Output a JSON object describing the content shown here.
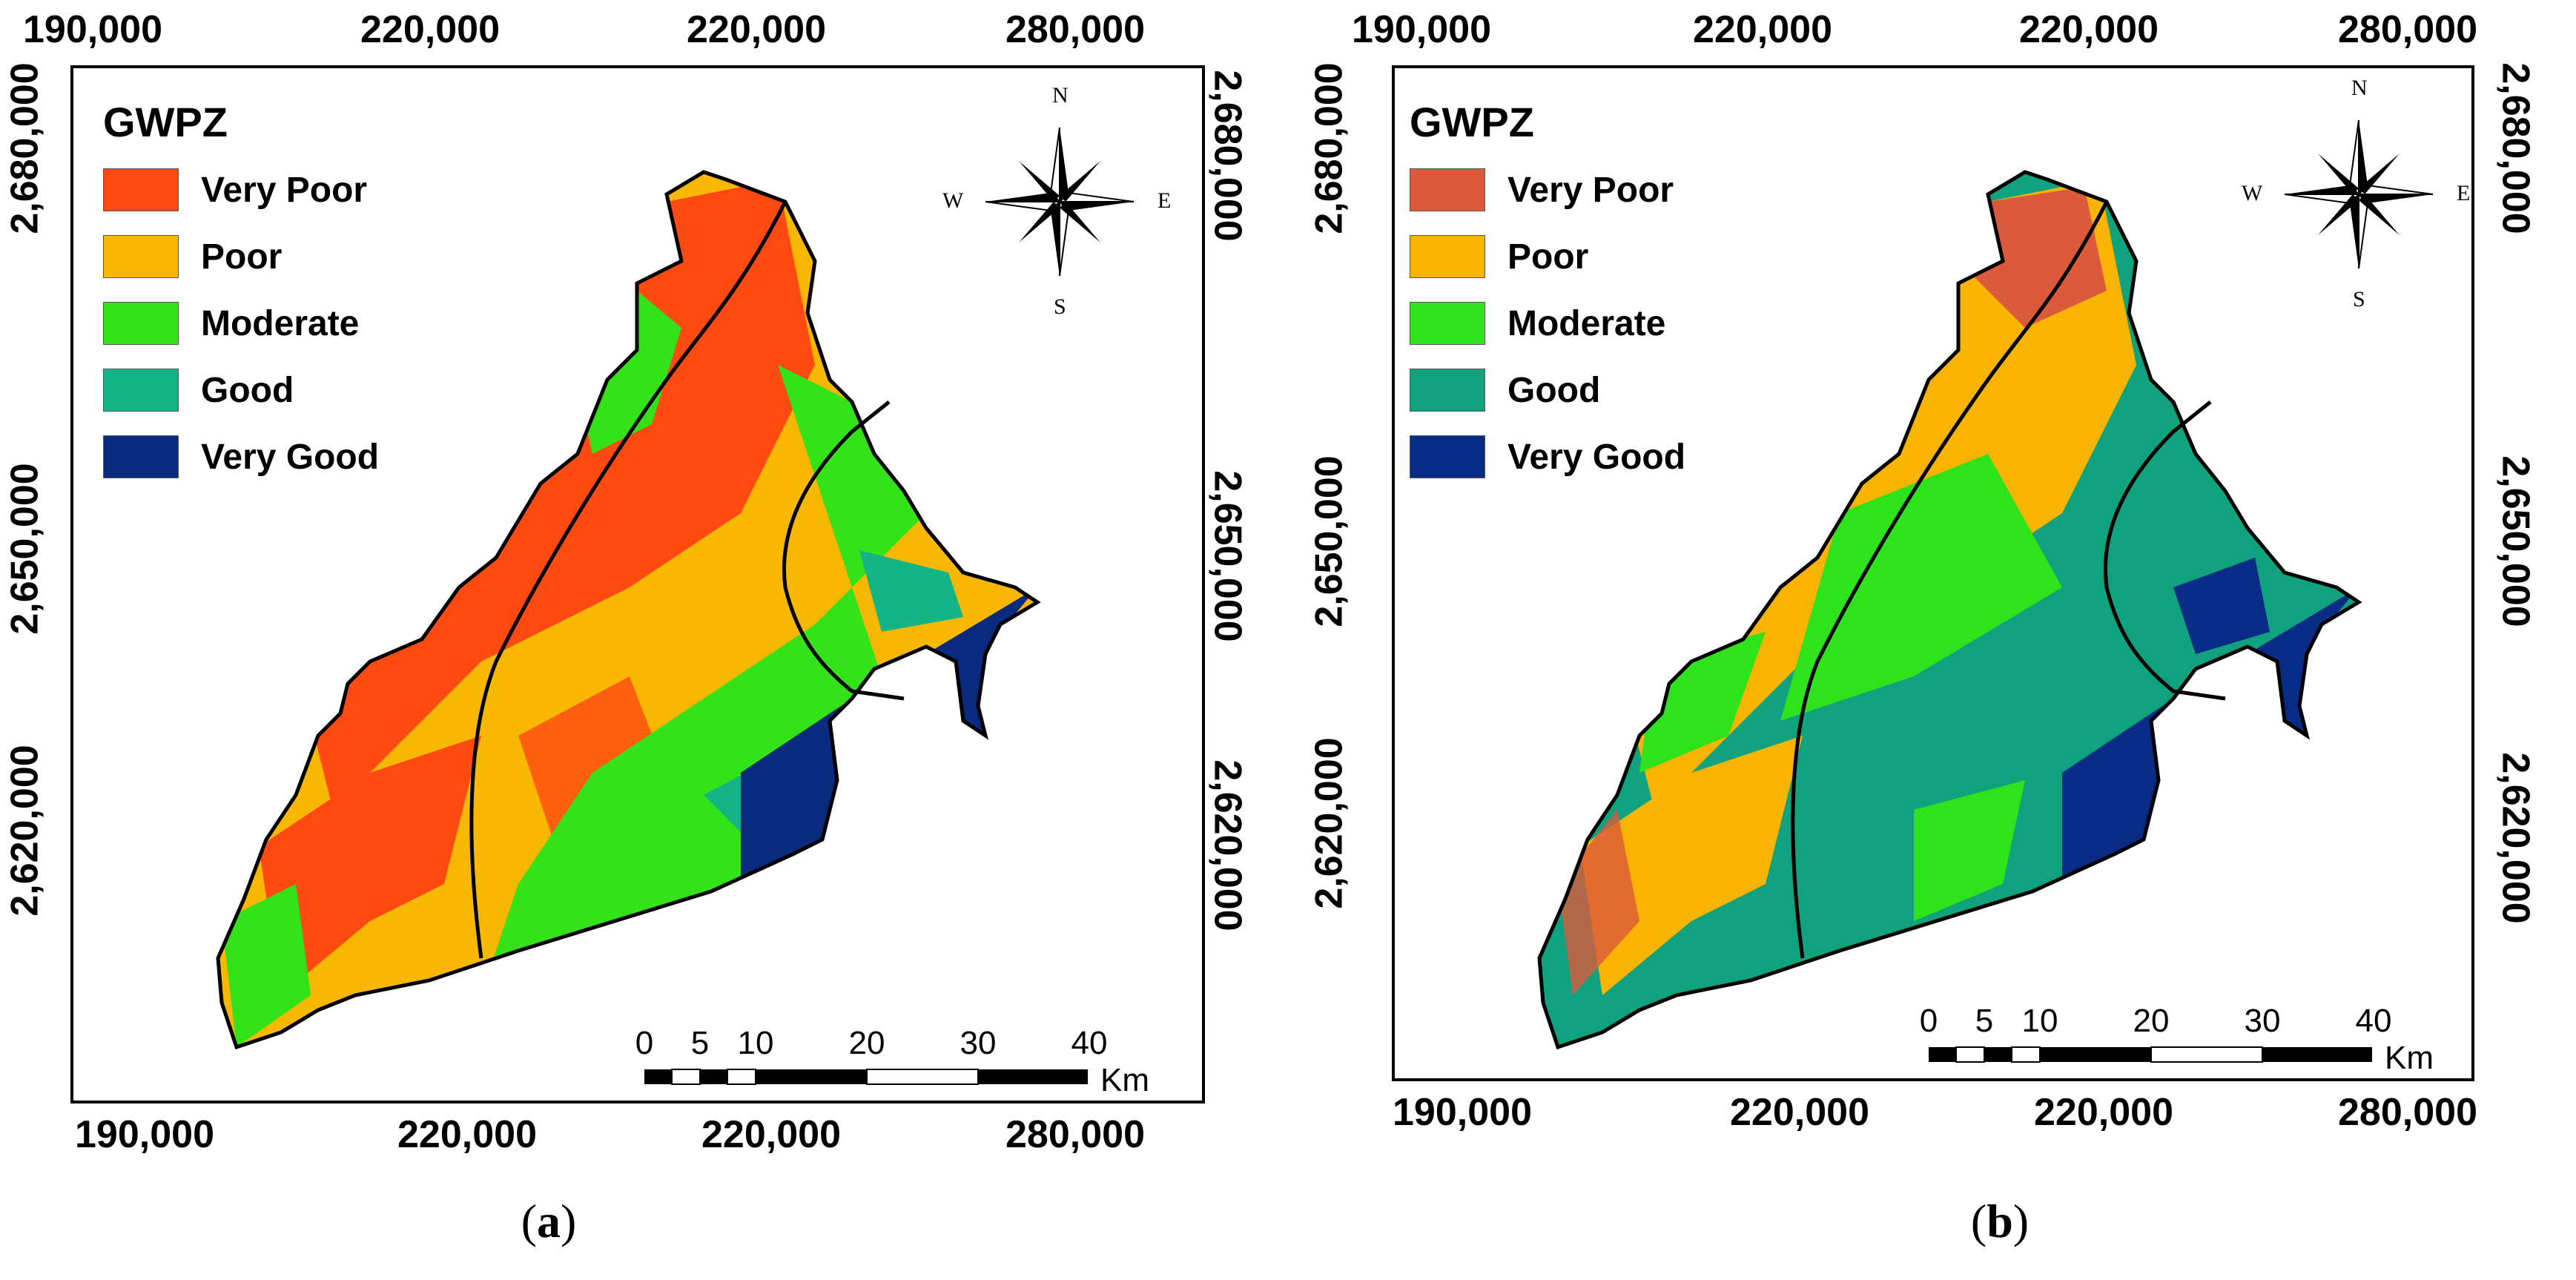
{
  "panels": [
    {
      "id": "a",
      "caption_letter": "a",
      "legend": {
        "title": "GWPZ",
        "items": [
          {
            "label": "Very Poor",
            "color": "#ff4a12"
          },
          {
            "label": "Poor",
            "color": "#f8b700"
          },
          {
            "label": "Moderate",
            "color": "#34e21a"
          },
          {
            "label": "Good",
            "color": "#14b486"
          },
          {
            "label": "Very Good",
            "color": "#0a2a7e"
          }
        ]
      },
      "x_ticks_top": [
        "190,000",
        "220,000",
        "220,000",
        "280,000"
      ],
      "x_ticks_bottom": [
        "190,000",
        "220,000",
        "220,000",
        "280,000"
      ],
      "y_ticks_left": [
        "2,680,000",
        "2,650,000",
        "2,620,000"
      ],
      "y_ticks_right": [
        "2,680,000",
        "2,650,000",
        "2,620,000"
      ],
      "compass": {
        "n": "N",
        "s": "S",
        "e": "E",
        "w": "W"
      },
      "scalebar": {
        "labels": [
          "0",
          "5",
          "10",
          "20",
          "30",
          "40"
        ],
        "unit": "Km"
      }
    },
    {
      "id": "b",
      "caption_letter": "b",
      "legend": {
        "title": "GWPZ",
        "items": [
          {
            "label": "Very Poor",
            "color": "#dc5a3c"
          },
          {
            "label": "Poor",
            "color": "#f8b400"
          },
          {
            "label": "Moderate",
            "color": "#2ee21c"
          },
          {
            "label": "Good",
            "color": "#10a27e"
          },
          {
            "label": "Very Good",
            "color": "#082c86"
          }
        ]
      },
      "x_ticks_top": [
        "190,000",
        "220,000",
        "220,000",
        "280,000"
      ],
      "x_ticks_bottom": [
        "190,000",
        "220,000",
        "220,000",
        "280,000"
      ],
      "y_ticks_left": [
        "2,680,000",
        "2,650,000",
        "2,620,000"
      ],
      "y_ticks_right": [
        "2,680,000",
        "2,650,000",
        "2,620,000"
      ],
      "compass": {
        "n": "N",
        "s": "S",
        "e": "E",
        "w": "W"
      },
      "scalebar": {
        "labels": [
          "0",
          "5",
          "10",
          "20",
          "30",
          "40"
        ],
        "unit": "Km"
      }
    }
  ]
}
